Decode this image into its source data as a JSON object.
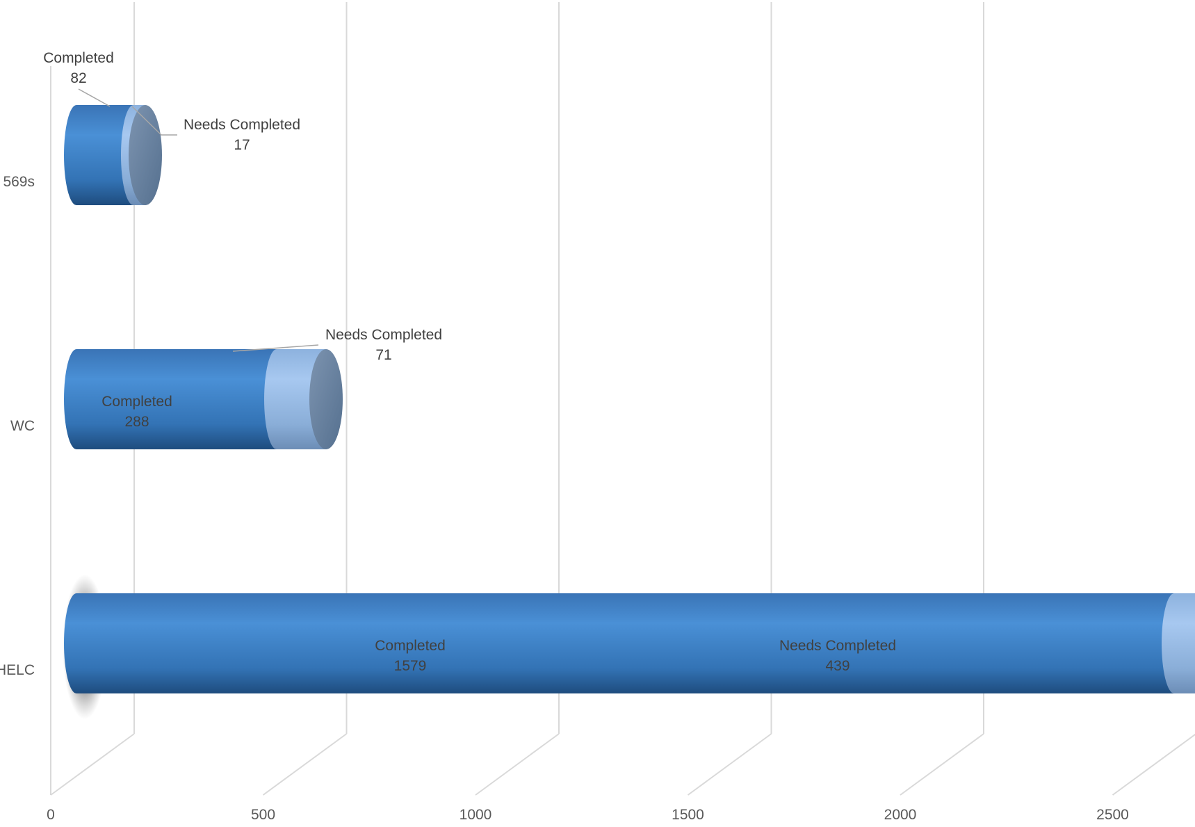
{
  "chart_data": {
    "type": "bar",
    "orientation": "horizontal",
    "stacked": true,
    "style": "3d-cylinder",
    "categories": [
      "569s",
      "WC",
      "HELC"
    ],
    "series": [
      {
        "name": "Completed",
        "values": [
          82,
          288,
          1579
        ],
        "color": "#3F7FC4"
      },
      {
        "name": "Needs Completed",
        "values": [
          17,
          71,
          439
        ],
        "color": "#92B6E4"
      }
    ],
    "x_ticks": [
      0,
      500,
      1000,
      1500,
      2000,
      2500
    ],
    "xlim": [
      0,
      2500
    ],
    "grid": true,
    "title": "",
    "xlabel": "",
    "ylabel": "",
    "legend": "none",
    "data_labels": [
      {
        "series": "Completed",
        "category": "569s",
        "name": "Completed",
        "value": "82"
      },
      {
        "series": "Needs Completed",
        "category": "569s",
        "name": "Needs Completed",
        "value": "17"
      },
      {
        "series": "Completed",
        "category": "WC",
        "name": "Completed",
        "value": "288"
      },
      {
        "series": "Needs Completed",
        "category": "WC",
        "name": "Needs Completed",
        "value": "71"
      },
      {
        "series": "Completed",
        "category": "HELC",
        "name": "Completed",
        "value": "1579"
      },
      {
        "series": "Needs Completed",
        "category": "HELC",
        "name": "Needs Completed",
        "value": "439"
      }
    ]
  }
}
